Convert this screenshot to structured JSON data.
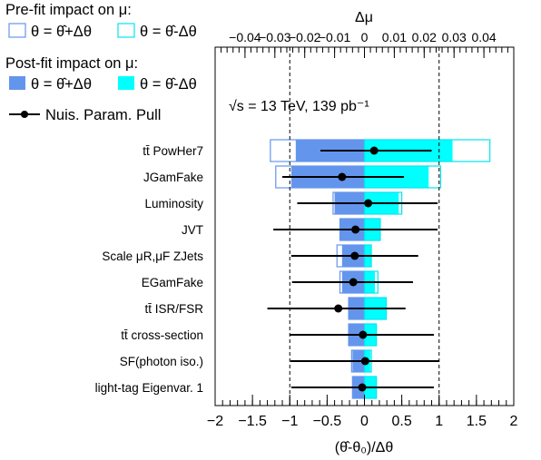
{
  "legend": {
    "prefit_title": "Pre-fit impact on  μ:",
    "postfit_title": "Post-fit impact on  μ:",
    "up_label": "θ = θ̂+Δθ",
    "down_label": "θ = θ̂-Δθ",
    "pull_label": "Nuis. Param. Pull"
  },
  "luminosity_label": "√s = 13 TeV, 139 pb⁻¹",
  "colors": {
    "postfit_up": "#6495ed",
    "postfit_down": "#00ffff",
    "prefit_up_outline": "#6495ed",
    "prefit_down_outline": "#00e5ee",
    "pull": "#000000"
  },
  "chart_data": {
    "type": "bar",
    "orientation": "horizontal",
    "xlabel": "(θ̂-θ₀)/Δθ",
    "x2label": "Δμ",
    "xlim": [
      -2,
      2
    ],
    "x2lim": [
      -0.05,
      0.05
    ],
    "x_ticks": [
      -2,
      -1.5,
      -1,
      -0.5,
      0,
      0.5,
      1,
      1.5,
      2
    ],
    "x_tick_labels": [
      "−2",
      "−1.5",
      "−1",
      "−0.5",
      "0",
      "0.5",
      "1",
      "1.5",
      "2"
    ],
    "x2_ticks": [
      -0.04,
      -0.03,
      -0.02,
      -0.01,
      0,
      0.01,
      0.02,
      0.03,
      0.04
    ],
    "x2_tick_labels": [
      "−0.04",
      "−0.03",
      "−0.02",
      "−0.01",
      "0",
      "0.01",
      "0.02",
      "0.03",
      "0.04"
    ],
    "reference_lines": [
      -1,
      1
    ],
    "categories": [
      "tt̄ PowHer7",
      "JGamFake",
      "Luminosity",
      "JVT",
      "Scale  μR,μF  ZJets",
      "EGamFake",
      "tt̄ ISR/FSR",
      "tt̄ cross-section",
      "SF(photon iso.)",
      "light-tag Eigenvar. 1"
    ],
    "series": [
      {
        "name": "Pre-fit impact  θ = θ̂+Δθ",
        "values": [
          -0.0315,
          -0.0297,
          -0.0105,
          -0.0082,
          -0.0092,
          -0.0082,
          -0.0053,
          -0.0053,
          -0.0043,
          -0.004
        ]
      },
      {
        "name": "Pre-fit impact  θ = θ̂-Δθ",
        "values": [
          0.042,
          0.0255,
          0.0125,
          0.0053,
          0.0023,
          0.0045,
          0.0073,
          0.004,
          0.0023,
          0.004
        ]
      },
      {
        "name": "Post-fit impact  θ = θ̂+Δθ",
        "values": [
          -0.023,
          -0.0245,
          -0.01,
          -0.0082,
          -0.0075,
          -0.0075,
          -0.0053,
          -0.0053,
          -0.004,
          -0.004
        ]
      },
      {
        "name": "Post-fit impact  θ = θ̂-Δθ",
        "values": [
          0.0295,
          0.0215,
          0.0115,
          0.0053,
          0.0023,
          0.0035,
          0.0073,
          0.004,
          0.002,
          0.004
        ]
      },
      {
        "name": "Nuis. Param. Pull",
        "values": [
          0.13,
          -0.3,
          0.05,
          -0.12,
          -0.13,
          -0.15,
          -0.35,
          -0.02,
          0.01,
          -0.03
        ],
        "err_lo": [
          0.72,
          0.8,
          0.95,
          1.1,
          0.85,
          0.82,
          0.95,
          0.98,
          1.0,
          0.95
        ],
        "err_hi": [
          0.77,
          0.83,
          0.93,
          1.1,
          0.85,
          0.8,
          0.9,
          0.95,
          0.99,
          0.96
        ]
      }
    ]
  }
}
